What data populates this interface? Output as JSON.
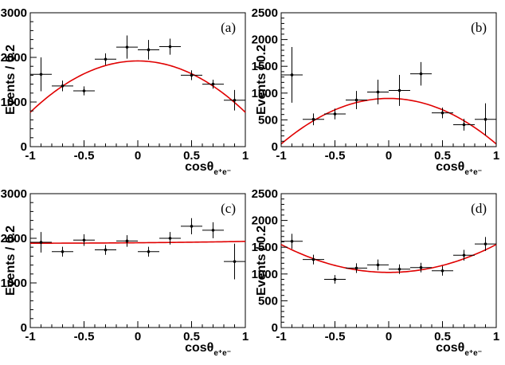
{
  "chart_data": [
    {
      "type": "scatter",
      "panel_label": "(a)",
      "ylabel": "Events / 0.2",
      "xlabel_main": "cosθ",
      "xlabel_sub": "e⁺e⁻",
      "xlim": [
        -1,
        1
      ],
      "ylim": [
        0,
        3000
      ],
      "xticks": [
        -1,
        -0.5,
        0,
        0.5,
        1
      ],
      "xticklabels": [
        "-1",
        "-0.5",
        "0",
        "0.5",
        "1"
      ],
      "yticks": [
        0,
        1000,
        2000,
        3000
      ],
      "yticklabels": [
        "0",
        "1000",
        "2000",
        "3000"
      ],
      "x_bin_half_width": 0.1,
      "points": [
        {
          "x": -0.9,
          "y": 1620,
          "err": 380
        },
        {
          "x": -0.7,
          "y": 1360,
          "err": 120
        },
        {
          "x": -0.5,
          "y": 1250,
          "err": 100
        },
        {
          "x": -0.3,
          "y": 1960,
          "err": 130
        },
        {
          "x": -0.1,
          "y": 2230,
          "err": 260
        },
        {
          "x": 0.1,
          "y": 2170,
          "err": 220
        },
        {
          "x": 0.3,
          "y": 2240,
          "err": 180
        },
        {
          "x": 0.5,
          "y": 1600,
          "err": 110
        },
        {
          "x": 0.7,
          "y": 1400,
          "err": 100
        },
        {
          "x": 0.9,
          "y": 1040,
          "err": 230
        }
      ],
      "fit": {
        "color": "#e00000",
        "a": 1920,
        "b": 0,
        "c": -1150
      }
    },
    {
      "type": "scatter",
      "panel_label": "(b)",
      "ylabel": "Events / 0.2",
      "xlabel_main": "cosθ",
      "xlabel_sub": "e⁺e⁻",
      "xlim": [
        -1,
        1
      ],
      "ylim": [
        0,
        2500
      ],
      "xticks": [
        -1,
        -0.5,
        0,
        0.5,
        1
      ],
      "xticklabels": [
        "-1",
        "-0.5",
        "0",
        "0.5",
        "1"
      ],
      "yticks": [
        0,
        500,
        1000,
        1500,
        2000,
        2500
      ],
      "yticklabels": [
        "0",
        "500",
        "1000",
        "1500",
        "2000",
        "2500"
      ],
      "x_bin_half_width": 0.1,
      "points": [
        {
          "x": -0.9,
          "y": 1340,
          "err": 520
        },
        {
          "x": -0.7,
          "y": 510,
          "err": 110
        },
        {
          "x": -0.5,
          "y": 610,
          "err": 100
        },
        {
          "x": -0.3,
          "y": 870,
          "err": 170
        },
        {
          "x": -0.1,
          "y": 1020,
          "err": 230
        },
        {
          "x": 0.1,
          "y": 1050,
          "err": 290
        },
        {
          "x": 0.3,
          "y": 1360,
          "err": 220
        },
        {
          "x": 0.5,
          "y": 630,
          "err": 100
        },
        {
          "x": 0.7,
          "y": 410,
          "err": 110
        },
        {
          "x": 0.9,
          "y": 510,
          "err": 300
        }
      ],
      "fit": {
        "color": "#e00000",
        "a": 900,
        "b": 0,
        "c": -850
      }
    },
    {
      "type": "scatter",
      "panel_label": "(c)",
      "ylabel": "Events / 0.2",
      "xlabel_main": "cosθ",
      "xlabel_sub": "e⁺e⁻",
      "xlim": [
        -1,
        1
      ],
      "ylim": [
        0,
        3000
      ],
      "xticks": [
        -1,
        -0.5,
        0,
        0.5,
        1
      ],
      "xticklabels": [
        "-1",
        "-0.5",
        "0",
        "0.5",
        "1"
      ],
      "yticks": [
        0,
        1000,
        2000,
        3000
      ],
      "yticklabels": [
        "0",
        "1000",
        "2000",
        "3000"
      ],
      "x_bin_half_width": 0.1,
      "points": [
        {
          "x": -0.9,
          "y": 1910,
          "err": 230
        },
        {
          "x": -0.7,
          "y": 1700,
          "err": 110
        },
        {
          "x": -0.5,
          "y": 1960,
          "err": 130
        },
        {
          "x": -0.3,
          "y": 1740,
          "err": 110
        },
        {
          "x": -0.1,
          "y": 1940,
          "err": 130
        },
        {
          "x": 0.1,
          "y": 1700,
          "err": 110
        },
        {
          "x": 0.3,
          "y": 2000,
          "err": 140
        },
        {
          "x": 0.5,
          "y": 2270,
          "err": 180
        },
        {
          "x": 0.7,
          "y": 2180,
          "err": 180
        },
        {
          "x": 0.9,
          "y": 1480,
          "err": 400
        }
      ],
      "fit": {
        "color": "#e00000",
        "a": 1900,
        "b": 20,
        "c": 10
      }
    },
    {
      "type": "scatter",
      "panel_label": "(d)",
      "ylabel": "Events / 0.2",
      "xlabel_main": "cosθ",
      "xlabel_sub": "e⁺e⁻",
      "xlim": [
        -1,
        1
      ],
      "ylim": [
        0,
        2500
      ],
      "xticks": [
        -1,
        -0.5,
        0,
        0.5,
        1
      ],
      "xticklabels": [
        "-1",
        "-0.5",
        "0",
        "0.5",
        "1"
      ],
      "yticks": [
        0,
        500,
        1000,
        1500,
        2000,
        2500
      ],
      "yticklabels": [
        "0",
        "500",
        "1000",
        "1500",
        "2000",
        "2500"
      ],
      "x_bin_half_width": 0.1,
      "points": [
        {
          "x": -0.9,
          "y": 1610,
          "err": 140
        },
        {
          "x": -0.7,
          "y": 1270,
          "err": 90
        },
        {
          "x": -0.5,
          "y": 900,
          "err": 80
        },
        {
          "x": -0.3,
          "y": 1110,
          "err": 90
        },
        {
          "x": -0.1,
          "y": 1170,
          "err": 100
        },
        {
          "x": 0.1,
          "y": 1090,
          "err": 90
        },
        {
          "x": 0.3,
          "y": 1120,
          "err": 90
        },
        {
          "x": 0.5,
          "y": 1060,
          "err": 90
        },
        {
          "x": 0.7,
          "y": 1350,
          "err": 100
        },
        {
          "x": 0.9,
          "y": 1560,
          "err": 130
        }
      ],
      "fit": {
        "color": "#e00000",
        "a": 1030,
        "b": 0,
        "c": 520
      }
    }
  ]
}
